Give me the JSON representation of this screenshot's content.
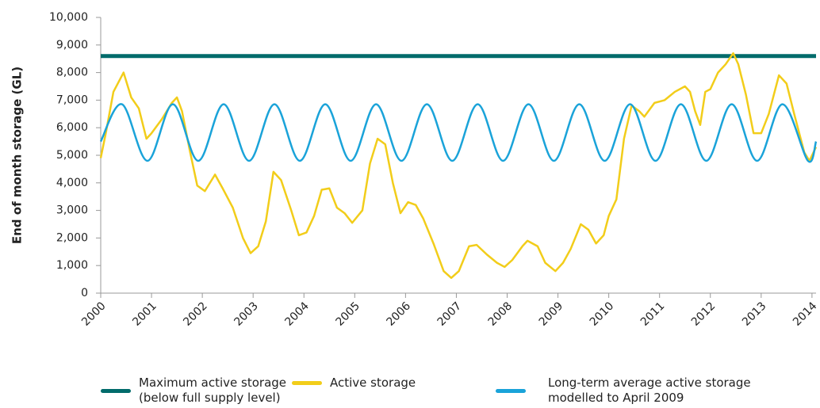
{
  "chart_data": {
    "type": "line",
    "ylabel": "End of month storage (GL)",
    "xlim": [
      2000,
      2014.08
    ],
    "xticks": [
      2000,
      2001,
      2002,
      2003,
      2004,
      2005,
      2006,
      2007,
      2008,
      2009,
      2010,
      2011,
      2012,
      2013,
      2014
    ],
    "ylim": [
      0,
      10000
    ],
    "yticks": [
      0,
      {
        "value": 1000,
        "label": "1,000"
      },
      {
        "value": 2000,
        "label": "2,000"
      },
      {
        "value": 3000,
        "label": "3,000"
      },
      {
        "value": 4000,
        "label": "4,000"
      },
      {
        "value": 5000,
        "label": "5,000"
      },
      {
        "value": 6000,
        "label": "6,000"
      },
      {
        "value": 7000,
        "label": "7,000"
      },
      {
        "value": 8000,
        "label": "8,000"
      },
      {
        "value": 9000,
        "label": "9,000"
      },
      {
        "value": 10000,
        "label": "10,000"
      }
    ],
    "grid": false,
    "legend": "bottom",
    "series": [
      {
        "name": "Maximum active storage (below full supply level)",
        "color": "#006b6b",
        "width": 5,
        "x": [
          2000,
          2014.08
        ],
        "values": [
          8600,
          8600
        ]
      },
      {
        "name": "Active storage",
        "color": "#f2cd1a",
        "width": 2.5,
        "x": [
          2000.0,
          2000.1,
          2000.25,
          2000.45,
          2000.6,
          2000.75,
          2000.9,
          2001.0,
          2001.2,
          2001.4,
          2001.5,
          2001.6,
          2001.75,
          2001.9,
          2002.05,
          2002.25,
          2002.4,
          2002.6,
          2002.8,
          2002.95,
          2003.1,
          2003.25,
          2003.4,
          2003.55,
          2003.75,
          2003.9,
          2004.05,
          2004.2,
          2004.35,
          2004.5,
          2004.65,
          2004.8,
          2004.95,
          2005.15,
          2005.3,
          2005.45,
          2005.6,
          2005.75,
          2005.9,
          2006.05,
          2006.2,
          2006.35,
          2006.55,
          2006.75,
          2006.9,
          2007.05,
          2007.25,
          2007.4,
          2007.6,
          2007.8,
          2007.95,
          2008.1,
          2008.3,
          2008.4,
          2008.6,
          2008.75,
          2008.95,
          2009.1,
          2009.25,
          2009.45,
          2009.6,
          2009.75,
          2009.9,
          2010.0,
          2010.15,
          2010.3,
          2010.45,
          2010.6,
          2010.7,
          2010.9,
          2011.1,
          2011.3,
          2011.5,
          2011.6,
          2011.7,
          2011.8,
          2011.9,
          2012.0,
          2012.15,
          2012.3,
          2012.45,
          2012.55,
          2012.7,
          2012.85,
          2013.0,
          2013.15,
          2013.35,
          2013.5,
          2013.65,
          2013.85,
          2013.95,
          2014.08
        ],
        "values": [
          4900,
          5800,
          7300,
          8000,
          7100,
          6700,
          5600,
          5800,
          6300,
          6900,
          7100,
          6600,
          5200,
          3900,
          3700,
          4300,
          3800,
          3100,
          2000,
          1450,
          1700,
          2600,
          4400,
          4100,
          3000,
          2100,
          2200,
          2800,
          3750,
          3800,
          3100,
          2900,
          2550,
          3000,
          4700,
          5600,
          5400,
          4000,
          2900,
          3300,
          3200,
          2700,
          1800,
          800,
          550,
          800,
          1700,
          1750,
          1400,
          1100,
          950,
          1200,
          1700,
          1900,
          1700,
          1100,
          800,
          1100,
          1600,
          2500,
          2300,
          1800,
          2100,
          2800,
          3400,
          5600,
          6800,
          6600,
          6400,
          6900,
          7000,
          7300,
          7500,
          7300,
          6600,
          6100,
          7300,
          7400,
          8000,
          8300,
          8700,
          8300,
          7200,
          5800,
          5800,
          6500,
          7900,
          7600,
          6500,
          5100,
          4800,
          5300
        ]
      },
      {
        "name": "Long-term average active storage modelled to April 2009",
        "color": "#1aa3d9",
        "width": 2.5,
        "smooth": true,
        "x": [
          2000,
          2000.42,
          2000.92,
          2001.42,
          2001.92,
          2002.42,
          2002.92,
          2003.42,
          2003.92,
          2004.42,
          2004.92,
          2005.42,
          2005.92,
          2006.42,
          2006.92,
          2007.42,
          2007.92,
          2008.42,
          2008.92,
          2009.42,
          2009.92,
          2010.42,
          2010.92,
          2011.42,
          2011.92,
          2012.42,
          2012.92,
          2013.42,
          2013.92,
          2014.08
        ],
        "values": [
          5500,
          6850,
          4800,
          6850,
          4800,
          6850,
          4800,
          6850,
          4800,
          6850,
          4800,
          6850,
          4800,
          6850,
          4800,
          6850,
          4800,
          6850,
          4800,
          6850,
          4800,
          6850,
          4800,
          6850,
          4800,
          6850,
          4800,
          6850,
          4800,
          5500
        ]
      }
    ]
  }
}
